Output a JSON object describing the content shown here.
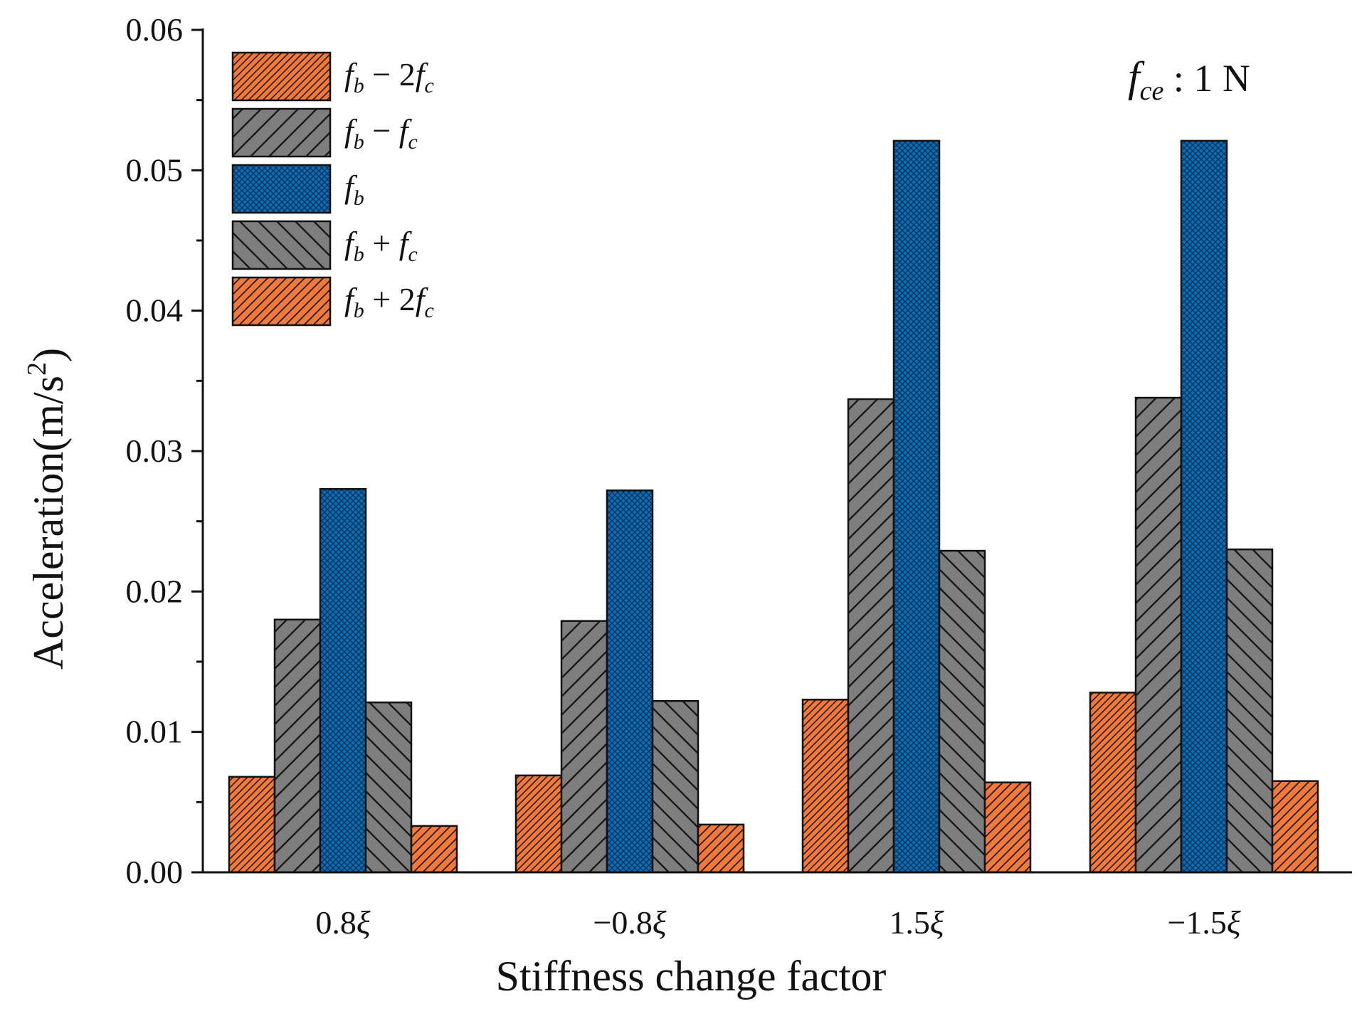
{
  "chart_data": {
    "type": "bar",
    "title": "",
    "xlabel": "Stiffness change factor",
    "ylabel": "Acceleration(m/s²)",
    "ylabel_parts": {
      "main": "Acceleration(m/s",
      "sup": "2",
      "end": ")"
    },
    "ylim": [
      0,
      0.06
    ],
    "yticks": [
      "0.00",
      "0.01",
      "0.02",
      "0.03",
      "0.04",
      "0.05",
      "0.06"
    ],
    "categories": [
      "0.8ξ",
      "−0.8ξ",
      "1.5ξ",
      "−1.5ξ"
    ],
    "series": [
      {
        "name": "fb − 2fc",
        "label": {
          "a": "f",
          "as": "b",
          "op": " − 2",
          "b": "f",
          "bs": "c"
        },
        "pattern": "hatch-dense-orange",
        "values": [
          0.0068,
          0.0069,
          0.0123,
          0.0128
        ]
      },
      {
        "name": "fb − fc",
        "label": {
          "a": "f",
          "as": "b",
          "op": " − ",
          "b": "f",
          "bs": "c"
        },
        "pattern": "hatch-fwd-gray",
        "values": [
          0.018,
          0.0179,
          0.0337,
          0.0338
        ]
      },
      {
        "name": "fb",
        "label": {
          "a": "f",
          "as": "b",
          "op": "",
          "b": "",
          "bs": ""
        },
        "pattern": "crosshatch-blue",
        "values": [
          0.0273,
          0.0272,
          0.0521,
          0.0521
        ]
      },
      {
        "name": "fb + fc",
        "label": {
          "a": "f",
          "as": "b",
          "op": " + ",
          "b": "f",
          "bs": "c"
        },
        "pattern": "hatch-back-gray",
        "values": [
          0.0121,
          0.0122,
          0.0229,
          0.023
        ]
      },
      {
        "name": "fb + 2fc",
        "label": {
          "a": "f",
          "as": "b",
          "op": " + 2",
          "b": "f",
          "bs": "c"
        },
        "pattern": "hatch-fwd-orange",
        "values": [
          0.0033,
          0.0034,
          0.0064,
          0.0065
        ]
      }
    ],
    "annotation": {
      "sym": "f",
      "sub": "ce",
      "value": " :  1 N"
    },
    "legend_position": "top-left",
    "grid": false
  },
  "colors": {
    "orange": "#F07A3C",
    "gray": "#7E7E7E",
    "blue": "#0E6DB7",
    "axis": "#111111"
  }
}
